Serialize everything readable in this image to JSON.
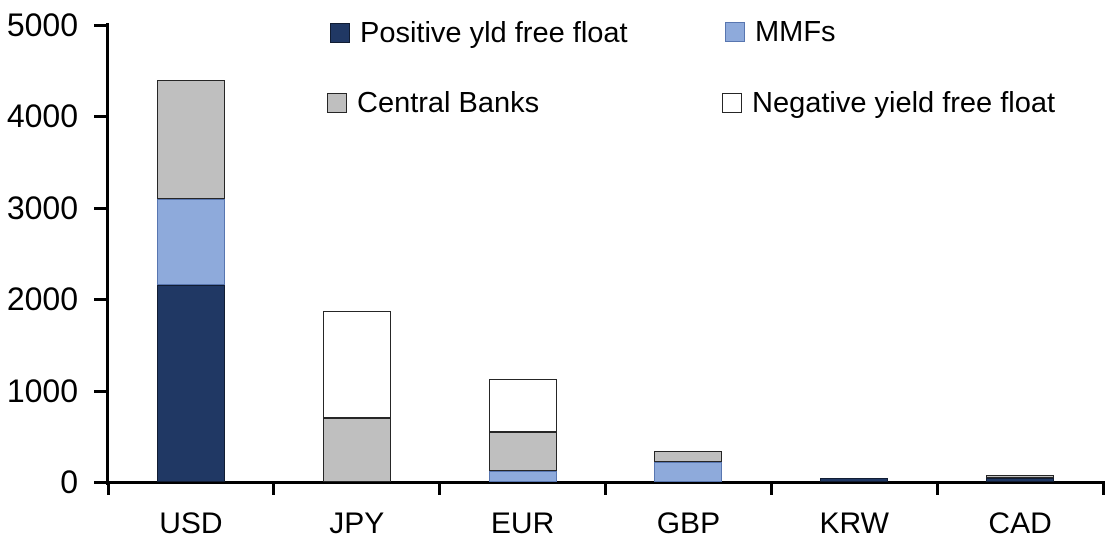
{
  "chart_data": {
    "type": "bar",
    "stacked": true,
    "title": "",
    "xlabel": "",
    "ylabel": "",
    "categories": [
      "USD",
      "JPY",
      "EUR",
      "GBP",
      "KRW",
      "CAD"
    ],
    "series": [
      {
        "name": "Positive yld free float",
        "color": "#203864",
        "border": "#111d33",
        "values": [
          2150,
          0,
          0,
          0,
          45,
          40
        ]
      },
      {
        "name": "MMFs",
        "color": "#8EAADB",
        "border": "#5876B0",
        "values": [
          950,
          0,
          120,
          220,
          0,
          0
        ]
      },
      {
        "name": "Central Banks",
        "color": "#BFBFBF",
        "border": "#262626",
        "values": [
          1300,
          700,
          430,
          120,
          0,
          35
        ]
      },
      {
        "name": "Negative yield free float",
        "color": "#FFFFFF",
        "border": "#262626",
        "values": [
          0,
          1170,
          580,
          0,
          0,
          0
        ]
      }
    ],
    "totals": [
      4400,
      1870,
      1130,
      340,
      45,
      75
    ],
    "ylim": [
      0,
      5000
    ],
    "ytick_interval": 1000,
    "yticks": [
      "0",
      "1000",
      "2000",
      "3000",
      "4000",
      "5000"
    ],
    "legend_position": "top",
    "legend_rows": [
      [
        "Positive yld free float",
        "MMFs"
      ],
      [
        "Central Banks",
        "Negative yield free float"
      ]
    ],
    "grid": false,
    "axis_color": "#000000",
    "background_color": "#ffffff"
  }
}
